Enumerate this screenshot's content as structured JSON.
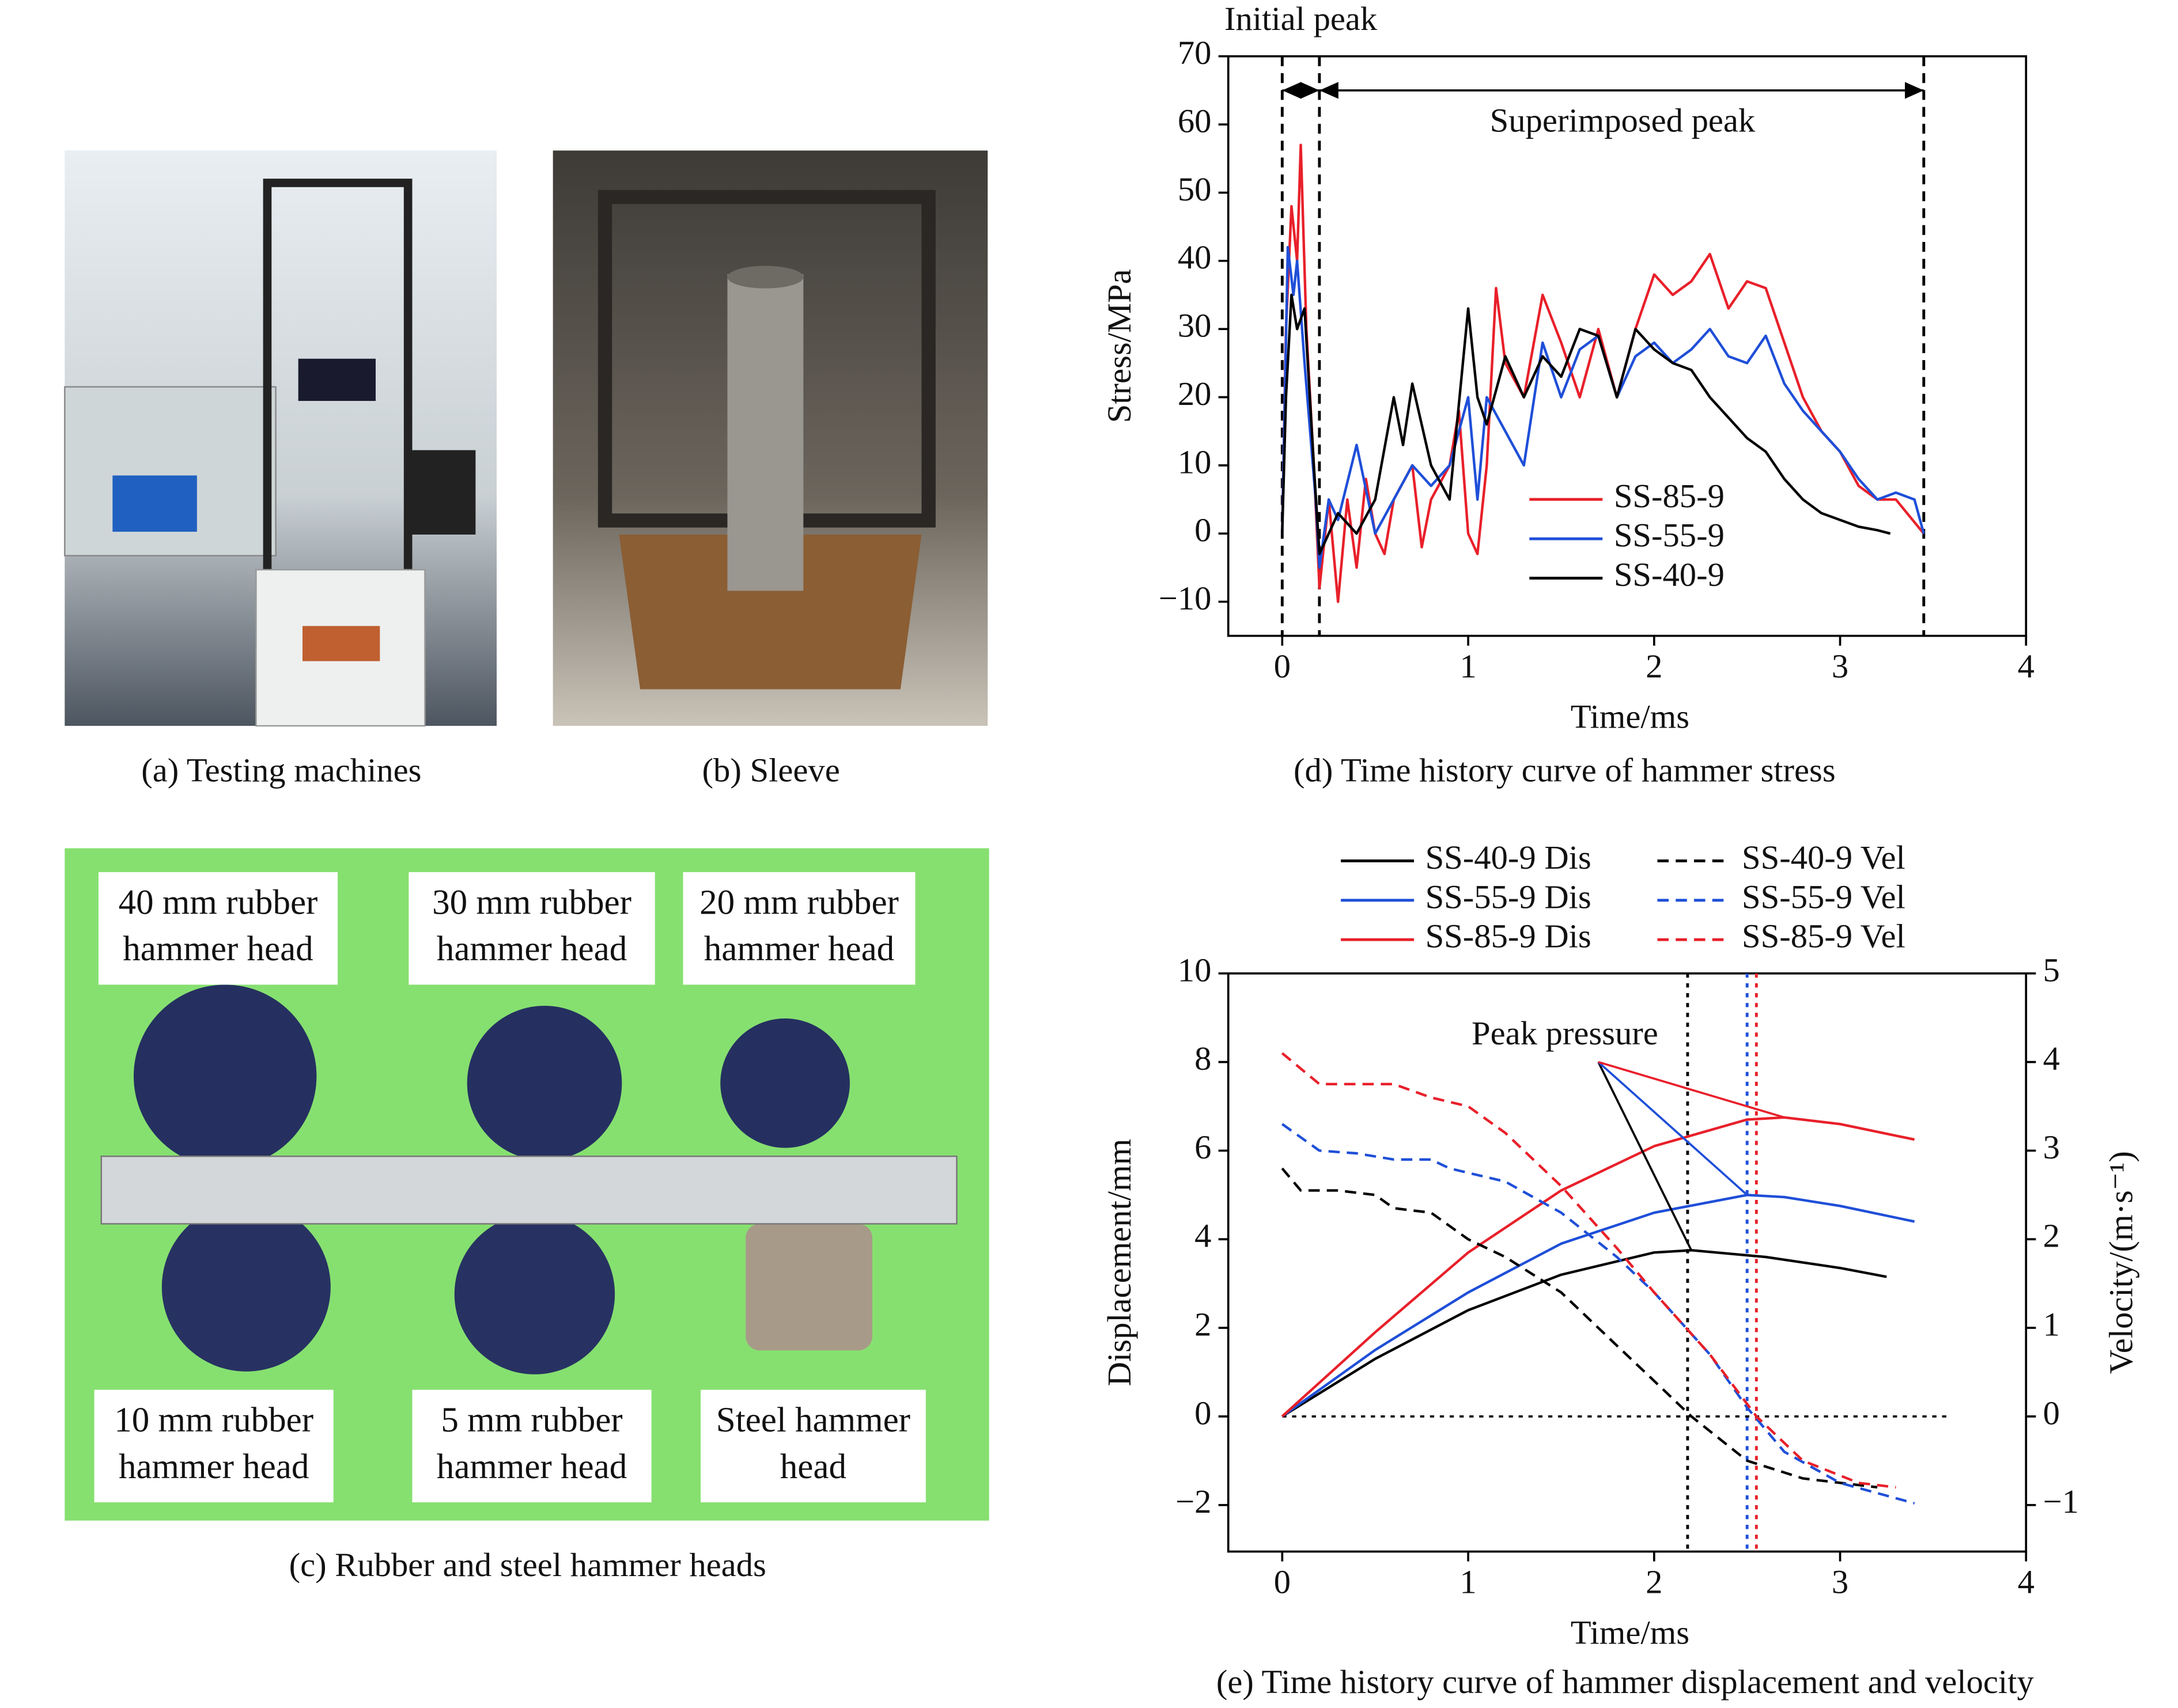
{
  "figure": {
    "captions": {
      "a": "(a) Testing machines",
      "b": "(b) Sleeve",
      "c": "(c) Rubber and steel hammer heads",
      "d": "(d) Time history curve of hammer stress",
      "e": "(e) Time history curve of hammer displacement and velocity"
    },
    "hammer_labels": [
      [
        "40 mm rubber",
        "hammer head"
      ],
      [
        "30 mm rubber",
        "hammer head"
      ],
      [
        "20 mm rubber",
        "hammer head"
      ],
      [
        "10 mm rubber",
        "hammer head"
      ],
      [
        "5 mm rubber",
        "hammer head"
      ],
      [
        "Steel hammer",
        "head"
      ]
    ]
  },
  "chart_data": [
    {
      "type": "line",
      "x_label": "Time/ms",
      "y_label": "Stress/MPa",
      "xlim": [
        -0.29,
        4
      ],
      "ylim": [
        -15,
        70
      ],
      "xticks": [
        0,
        1,
        2,
        3,
        4
      ],
      "yticks": [
        {
          "value": -10,
          "label": "−10"
        },
        0,
        10,
        20,
        30,
        40,
        50,
        60,
        70
      ],
      "legend": "lower center",
      "line_style": "dashed",
      "vlines": [
        {
          "x": 0
        },
        {
          "x": 0.2
        },
        {
          "x": 3.45
        }
      ],
      "spans": [
        {
          "from": 0,
          "to": 0.2,
          "y": 65
        },
        {
          "from": 0.2,
          "to": 3.45,
          "y": 65
        }
      ],
      "annotations": [
        {
          "text": "Initial peak",
          "x": 0.1,
          "y": 75
        },
        {
          "text": "Superimposed peak",
          "x": 1.83,
          "y": 60.1
        }
      ],
      "series": [
        {
          "name": "SS-85-9",
          "color": "#e8202a",
          "x": [
            0,
            0.02,
            0.05,
            0.08,
            0.1,
            0.13,
            0.17,
            0.2,
            0.25,
            0.3,
            0.35,
            0.4,
            0.45,
            0.5,
            0.55,
            0.6,
            0.7,
            0.75,
            0.8,
            0.9,
            0.95,
            1.0,
            1.05,
            1.1,
            1.15,
            1.2,
            1.3,
            1.4,
            1.5,
            1.6,
            1.7,
            1.8,
            1.9,
            2.0,
            2.1,
            2.2,
            2.3,
            2.4,
            2.5,
            2.6,
            2.7,
            2.8,
            2.9,
            3.0,
            3.1,
            3.2,
            3.3,
            3.45
          ],
          "values": [
            0,
            30,
            48,
            40,
            57,
            30,
            10,
            -8,
            5,
            -10,
            5,
            -5,
            8,
            0,
            -3,
            5,
            10,
            -2,
            5,
            10,
            18,
            0,
            -3,
            10,
            36,
            25,
            20,
            35,
            28,
            20,
            30,
            20,
            30,
            38,
            35,
            37,
            41,
            33,
            37,
            36,
            28,
            20,
            15,
            12,
            7,
            5,
            5,
            0
          ]
        },
        {
          "name": "SS-55-9",
          "color": "#1f4fd8",
          "x": [
            0,
            0.03,
            0.06,
            0.08,
            0.12,
            0.18,
            0.2,
            0.25,
            0.3,
            0.4,
            0.5,
            0.6,
            0.7,
            0.8,
            0.9,
            1.0,
            1.05,
            1.1,
            1.2,
            1.3,
            1.4,
            1.5,
            1.6,
            1.7,
            1.8,
            1.9,
            2.0,
            2.1,
            2.2,
            2.3,
            2.4,
            2.5,
            2.6,
            2.7,
            2.8,
            2.9,
            3.0,
            3.1,
            3.2,
            3.3,
            3.4,
            3.45
          ],
          "values": [
            0,
            42,
            35,
            40,
            25,
            5,
            -5,
            5,
            2,
            13,
            0,
            5,
            10,
            7,
            10,
            20,
            5,
            20,
            15,
            10,
            28,
            20,
            27,
            29,
            20,
            26,
            28,
            25,
            27,
            30,
            26,
            25,
            29,
            22,
            18,
            15,
            12,
            8,
            5,
            6,
            5,
            0
          ]
        },
        {
          "name": "SS-40-9",
          "color": "#000000",
          "x": [
            0,
            0.02,
            0.05,
            0.08,
            0.12,
            0.17,
            0.2,
            0.3,
            0.4,
            0.5,
            0.6,
            0.65,
            0.7,
            0.8,
            0.9,
            1.0,
            1.05,
            1.1,
            1.2,
            1.3,
            1.4,
            1.5,
            1.6,
            1.7,
            1.8,
            1.9,
            2.0,
            2.1,
            2.2,
            2.3,
            2.4,
            2.5,
            2.6,
            2.7,
            2.8,
            2.9,
            3.0,
            3.1,
            3.2,
            3.27
          ],
          "values": [
            0,
            20,
            35,
            30,
            33,
            10,
            -3,
            3,
            0,
            5,
            20,
            13,
            22,
            10,
            5,
            33,
            20,
            16,
            26,
            20,
            26,
            23,
            30,
            29,
            20,
            30,
            27,
            25,
            24,
            20,
            17,
            14,
            12,
            8,
            5,
            3,
            2,
            1,
            0.5,
            0
          ]
        }
      ]
    },
    {
      "type": "line",
      "x_label": "Time/ms",
      "y_label": "Displacement/mm",
      "y2_label": "Velocity/(m·s⁻¹)",
      "xlim": [
        -0.29,
        4
      ],
      "ylim": [
        -3.05,
        10
      ],
      "y2lim": [
        -1.525,
        5
      ],
      "xticks": [
        0,
        1,
        2,
        3,
        4
      ],
      "yticks": [
        {
          "value": -2,
          "label": "−2"
        },
        0,
        2,
        4,
        6,
        8,
        10
      ],
      "y2ticks": [
        {
          "value": -1,
          "label": "−1"
        },
        0,
        1,
        2,
        3,
        4,
        5
      ],
      "legend": "top",
      "line_style": "dotted",
      "vlines": [
        {
          "x": 2.18,
          "color": "#000000"
        },
        {
          "x": 2.5,
          "color": "#1f4fd8"
        },
        {
          "x": 2.55,
          "color": "#e8202a"
        }
      ],
      "hlines": [
        {
          "y": 0,
          "from": 0,
          "to": 3.6
        }
      ],
      "annotations": [
        {
          "text": "Peak pressure",
          "x": 1.52,
          "y": 8.57,
          "pointer": [
            1.7,
            8
          ]
        }
      ],
      "series": [
        {
          "name": "SS-40-9 Dis",
          "color": "#000000",
          "x": [
            0,
            0.5,
            1,
            1.5,
            2,
            2.2,
            2.6,
            3,
            3.25
          ],
          "values": [
            0,
            1.3,
            2.4,
            3.2,
            3.7,
            3.75,
            3.6,
            3.35,
            3.15
          ]
        },
        {
          "name": "SS-55-9 Dis",
          "color": "#1f4fd8",
          "x": [
            0,
            0.5,
            1,
            1.5,
            2,
            2.5,
            2.7,
            3,
            3.4
          ],
          "values": [
            0,
            1.5,
            2.8,
            3.9,
            4.6,
            5.0,
            4.95,
            4.75,
            4.4
          ]
        },
        {
          "name": "SS-85-9 Dis",
          "color": "#e8202a",
          "x": [
            0,
            0.5,
            1,
            1.5,
            2,
            2.5,
            2.7,
            3,
            3.4
          ],
          "values": [
            0,
            1.9,
            3.7,
            5.1,
            6.1,
            6.7,
            6.75,
            6.6,
            6.25
          ]
        },
        {
          "name": "SS-40-9 Vel",
          "color": "#000000",
          "dash": true,
          "axis": "y2",
          "x": [
            0,
            0.1,
            0.3,
            0.5,
            0.6,
            0.8,
            1,
            1.2,
            1.5,
            1.8,
            2,
            2.2,
            2.5,
            2.8,
            3.2
          ],
          "values": [
            2.8,
            2.55,
            2.55,
            2.5,
            2.35,
            2.3,
            2.0,
            1.8,
            1.4,
            0.8,
            0.4,
            0,
            -0.5,
            -0.7,
            -0.8
          ]
        },
        {
          "name": "SS-55-9 Vel",
          "color": "#1f4fd8",
          "dash": true,
          "axis": "y2",
          "x": [
            0,
            0.2,
            0.4,
            0.6,
            0.8,
            0.9,
            1.2,
            1.5,
            1.8,
            2.0,
            2.3,
            2.5,
            2.7,
            3,
            3.4
          ],
          "values": [
            3.3,
            3.0,
            2.97,
            2.9,
            2.9,
            2.8,
            2.65,
            2.3,
            1.8,
            1.4,
            0.7,
            0.1,
            -0.4,
            -0.75,
            -0.98
          ]
        },
        {
          "name": "SS-85-9 Vel",
          "color": "#e8202a",
          "dash": true,
          "axis": "y2",
          "x": [
            0,
            0.2,
            0.4,
            0.6,
            0.8,
            1,
            1.2,
            1.5,
            1.8,
            2.0,
            2.3,
            2.55,
            2.8,
            3.1,
            3.3
          ],
          "values": [
            4.1,
            3.75,
            3.75,
            3.75,
            3.6,
            3.5,
            3.2,
            2.6,
            1.9,
            1.4,
            0.7,
            0,
            -0.5,
            -0.75,
            -0.8
          ]
        }
      ]
    }
  ]
}
